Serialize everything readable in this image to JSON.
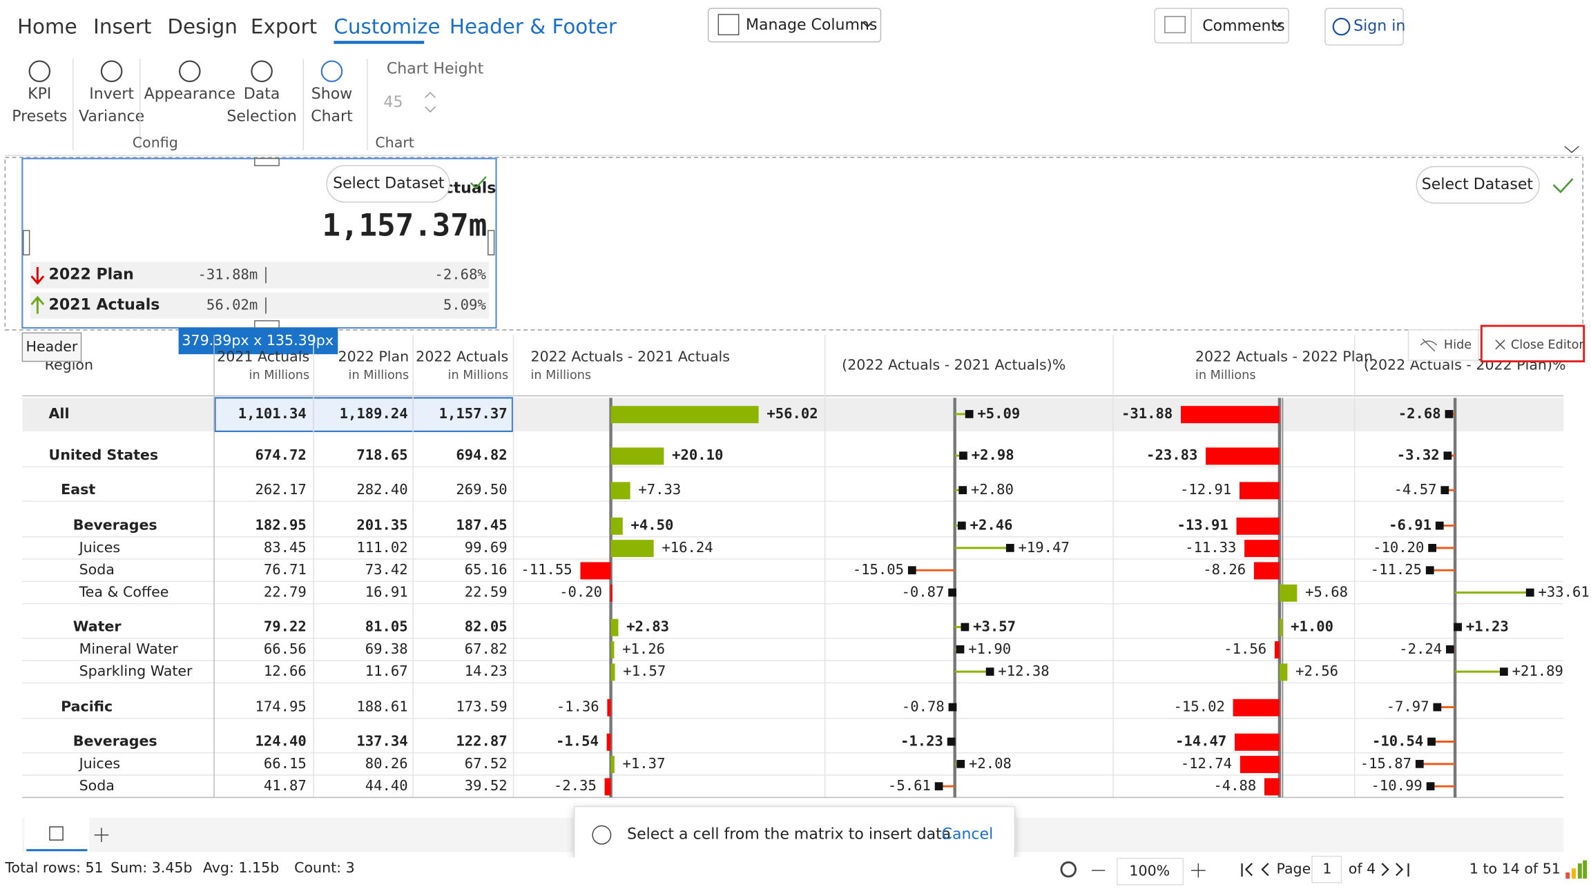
{
  "ribbon": {
    "tabs": [
      "Home",
      "Insert",
      "Design",
      "Export",
      "Customize",
      "Header & Footer"
    ],
    "buttons": [
      [
        "KPI",
        "Presets"
      ],
      [
        "Invert",
        "Variance"
      ],
      [
        "Appearance"
      ],
      [
        "Data",
        "Selection"
      ],
      [
        "Show",
        "Chart"
      ]
    ],
    "groups": [
      "Config",
      "Chart"
    ],
    "chart_height_label": "Chart Height",
    "chart_height_value": "45",
    "manage_columns": "Manage Columns",
    "comments": "Comments",
    "sign_in": "Sign in"
  },
  "kpi_card": {
    "select_dataset": "Select Dataset",
    "title": "ctuals",
    "value": "1,157.37m",
    "rows": [
      {
        "label": "2022 Plan",
        "abs": "-31.88m",
        "pct": "-2.68%"
      },
      {
        "label": "2021 Actuals",
        "abs": "56.02m",
        "pct": "5.09%"
      }
    ],
    "size_badge": "379.39px x 135.39px",
    "header_tag": "Header",
    "select_dataset_right": "Select Dataset"
  },
  "editor": {
    "hide": "Hide",
    "close_editor": "Close Editor"
  },
  "table": {
    "columns": [
      {
        "title": "Region"
      },
      {
        "title": "2021 Actuals",
        "unit": "in Millions"
      },
      {
        "title": "2022 Plan",
        "unit": "in Millions"
      },
      {
        "title": "2022 Actuals",
        "unit": "in Millions"
      },
      {
        "title": "2022 Actuals - 2021 Actuals",
        "unit": "in Millions"
      },
      {
        "title": "(2022 Actuals - 2021 Actuals)%"
      },
      {
        "title": "2022 Actuals - 2022 Plan",
        "unit": "in Millions"
      },
      {
        "title": "(2022 Actuals - 2022 Plan)%"
      }
    ],
    "rows": [
      [
        "All",
        "1,101.34",
        "1,189.24",
        "1,157.37",
        "+56.02",
        "+5.09",
        "-31.88",
        "-2.68"
      ],
      [
        "United States",
        "674.72",
        "718.65",
        "694.82",
        "+20.10",
        "+2.98",
        "-23.83",
        "-3.32"
      ],
      [
        "East",
        "262.17",
        "282.40",
        "269.50",
        "+7.33",
        "+2.80",
        "-12.91",
        "-4.57"
      ],
      [
        "Beverages",
        "182.95",
        "201.35",
        "187.45",
        "+4.50",
        "+2.46",
        "-13.91",
        "-6.91"
      ],
      [
        "Juices",
        "83.45",
        "111.02",
        "99.69",
        "+16.24",
        "+19.47",
        "-11.33",
        "-10.20"
      ],
      [
        "Soda",
        "76.71",
        "73.42",
        "65.16",
        "-11.55",
        "-15.05",
        "-8.26",
        "-11.25"
      ],
      [
        "Tea & Coffee",
        "22.79",
        "16.91",
        "22.59",
        "-0.20",
        "-0.87",
        "+5.68",
        "+33.61"
      ],
      [
        "Water",
        "79.22",
        "81.05",
        "82.05",
        "+2.83",
        "+3.57",
        "+1.00",
        "+1.23"
      ],
      [
        "Mineral Water",
        "66.56",
        "69.38",
        "67.82",
        "+1.26",
        "+1.90",
        "-1.56",
        "-2.24"
      ],
      [
        "Sparkling Water",
        "12.66",
        "11.67",
        "14.23",
        "+1.57",
        "+12.38",
        "+2.56",
        "+21.89"
      ],
      [
        "Pacific",
        "174.95",
        "188.61",
        "173.59",
        "-1.36",
        "-0.78",
        "-15.02",
        "-7.97"
      ],
      [
        "Beverages",
        "124.40",
        "137.34",
        "122.87",
        "-1.54",
        "-1.23",
        "-14.47",
        "-10.54"
      ],
      [
        "Juices",
        "66.15",
        "80.26",
        "67.52",
        "+1.37",
        "+2.08",
        "-12.74",
        "-15.87"
      ],
      [
        "Soda",
        "41.87",
        "44.40",
        "39.52",
        "-2.35",
        "-5.61",
        "-4.88",
        "-10.99"
      ]
    ]
  },
  "toast": {
    "message": "Select a cell from the matrix to insert data",
    "cancel": "Cancel"
  },
  "status": {
    "total_rows": "Total rows: 51",
    "sum": "Sum: 3.45b",
    "avg": "Avg: 1.15b",
    "count": "Count: 3",
    "zoom": "100%",
    "page_label": "Page",
    "page": "1",
    "of_pages": "of 4",
    "range": "1 to 14 of 51"
  }
}
